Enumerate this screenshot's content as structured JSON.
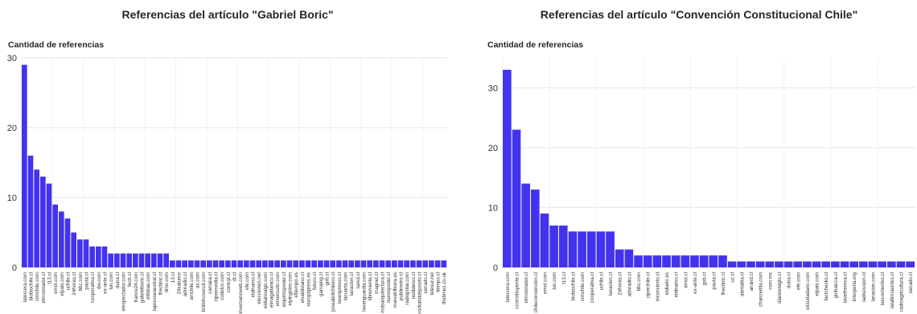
{
  "colors": {
    "bar": "#4433ee",
    "grid": "#e6e6e6",
    "tick": "#333333"
  },
  "chart_data": [
    {
      "type": "bar",
      "title": "Referencias del artículo \"Gabriel Boric\"",
      "ylabel": "Cantidad de referencias",
      "xlabel": "",
      "ylim": [
        0,
        30
      ],
      "yticks": [
        0,
        10,
        20,
        30
      ],
      "grid": true,
      "categories": [
        "latercera.com",
        "biobiochile.cl",
        "cnnchile.com",
        "elmostrador.cl",
        "t13.cl",
        "emol.com",
        "elpais.com",
        "uchile.cl",
        "24horas.cl",
        "bbc.com",
        "pauta.cl",
        "cooperativa.cl",
        "dw.com",
        "ex-ante.cl",
        "lun.com",
        "duna.cl",
        "elespectador.com",
        "fech.cl",
        "france24.com",
        "gabrielboric.cl",
        "infobae.com",
        "lapresseaustral.cl",
        "theclinic.cl",
        "time.com",
        "13.cl",
        "24saturno",
        "adnradio.cl",
        "amchile.com",
        "as.com",
        "britishcouncil.com",
        "camara.cl",
        "cipermedia.cl",
        "codelco.com",
        "conicyt.cl",
        "dt.cl",
        "conversanoweb.com",
        "efe.com",
        "eldinamo.cl",
        "elecciones.net",
        "eldiarioalgo.com",
        "elmagallanico.cl",
        "elmercurio.com",
        "elquintopoder.cl",
        "elpingüino.com",
        "eltiempo.es",
        "elvaldiviano.cl",
        "europapress.es",
        "futuro.cl",
        "gamalog.cl",
        "gob.cl",
        "joseabrilchileno.cl",
        "lasexpresso.cl",
        "lacuarta.com",
        "lanacion.cl",
        "lared.cl",
        "lavanguardia.com",
        "libremente.cl",
        "magnet.cl",
        "mdsarquitectura.cl",
        "nuevopoder.cl",
        "nuevatribuna.es",
        "publimetro.cl",
        "radiopolar.com",
        "redlideres.cl",
        "rockanddeposito.cl",
        "senado.cl",
        "telesur.net",
        "tiempo.cl",
        "thetimes.co.uk"
      ],
      "values": [
        29,
        16,
        14,
        13,
        12,
        9,
        8,
        7,
        5,
        4,
        4,
        3,
        3,
        3,
        2,
        2,
        2,
        2,
        2,
        2,
        2,
        2,
        2,
        2,
        1,
        1,
        1,
        1,
        1,
        1,
        1,
        1,
        1,
        1,
        1,
        1,
        1,
        1,
        1,
        1,
        1,
        1,
        1,
        1,
        1,
        1,
        1,
        1,
        1,
        1,
        1,
        1,
        1,
        1,
        1,
        1,
        1,
        1,
        1,
        1,
        1,
        1,
        1,
        1,
        1,
        1,
        1,
        1,
        1
      ]
    },
    {
      "type": "bar",
      "title": "Referencias del artículo \"Convención Constitucional Chile\"",
      "ylabel": "Cantidad de referencias",
      "xlabel": "",
      "ylim": [
        0,
        35
      ],
      "yticks": [
        0,
        10,
        20,
        30
      ],
      "grid": true,
      "categories": [
        "latercera.com",
        "cconstituyente.cl",
        "elmostrador.cl",
        "chileconvencion.cl",
        "emol.com",
        "lun.com",
        "t13.cl",
        "biobiochile.cl",
        "cnnchile.com",
        "cooperativa.cl",
        "uchile.cl",
        "lanacion.cl",
        "24horas.cl",
        "adnradio.cl",
        "bbc.com",
        "ciperchile.cl",
        "elconcierto.cl",
        "eldiario.es",
        "eldinamo.cl",
        "emol.cl",
        "ex-ante.cl",
        "gob.cl",
        "pauta.cl",
        "theclinic.cl",
        "uc.cl",
        "alertabla.cl",
        "anand.cl",
        "chancerilla.com",
        "com.mx",
        "diarioelsiglo.cl",
        "duna.cl",
        "efe.com",
        "elciudadano.com",
        "elpais.com",
        "factchecks.cl",
        "globalcca.cl",
        "lavetheresa.cl",
        "interperia.org",
        "ladiscusion.cl",
        "lanacion.com",
        "lascorrientes.cl",
        "latafirmauntes.cl",
        "radioagricultura.cl",
        "senado.cl"
      ],
      "values": [
        33,
        23,
        14,
        13,
        9,
        7,
        7,
        6,
        6,
        6,
        6,
        6,
        3,
        3,
        2,
        2,
        2,
        2,
        2,
        2,
        2,
        2,
        2,
        2,
        1,
        1,
        1,
        1,
        1,
        1,
        1,
        1,
        1,
        1,
        1,
        1,
        1,
        1,
        1,
        1,
        1,
        1,
        1,
        1
      ]
    }
  ]
}
